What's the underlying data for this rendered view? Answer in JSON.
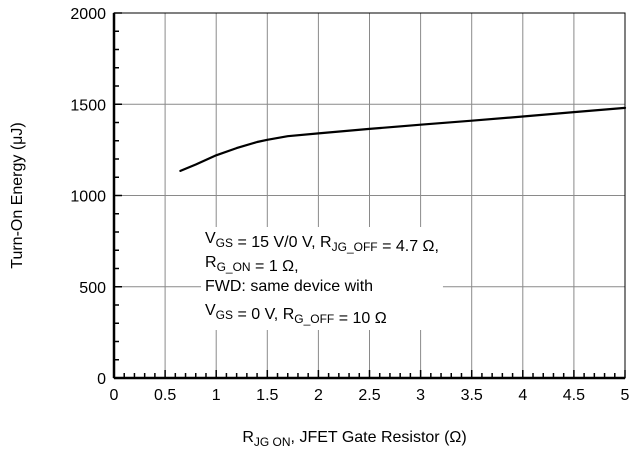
{
  "chart_data": {
    "type": "line",
    "title": "",
    "xlabel": {
      "main": "R",
      "sub": "JG ON",
      "rest": ", JFET Gate Resistor (Ω)"
    },
    "ylabel": "Turn-On Energy (μJ)",
    "xlim": [
      0,
      5
    ],
    "ylim": [
      0,
      2000
    ],
    "x_ticks": [
      "0",
      "0.5",
      "1",
      "1.5",
      "2",
      "2.5",
      "3",
      "3.5",
      "4",
      "4.5",
      "5"
    ],
    "y_ticks": [
      "0",
      "500",
      "1000",
      "1500",
      "2000"
    ],
    "grid": true,
    "series": [
      {
        "x": [
          0.65,
          0.8,
          1.0,
          1.2,
          1.4,
          1.5,
          1.7,
          2.0,
          2.5,
          3.0,
          3.5,
          4.0,
          4.5,
          5.0
        ],
        "values": [
          1135,
          1170,
          1220,
          1260,
          1293,
          1305,
          1325,
          1340,
          1365,
          1388,
          1410,
          1433,
          1457,
          1480
        ]
      }
    ],
    "annotation": [
      [
        {
          "t": "V"
        },
        {
          "t": "GS",
          "sub": true
        },
        {
          "t": " = 15 V/0 V, R"
        },
        {
          "t": "JG_OFF",
          "sub": true
        },
        {
          "t": " = 4.7 Ω,"
        }
      ],
      [
        {
          "t": "R"
        },
        {
          "t": "G_ON",
          "sub": true
        },
        {
          "t": " = 1 Ω,"
        }
      ],
      [
        {
          "t": "FWD: same device with"
        }
      ],
      [
        {
          "t": "V"
        },
        {
          "t": "GS",
          "sub": true
        },
        {
          "t": " = 0 V, R"
        },
        {
          "t": "G_OFF",
          "sub": true
        },
        {
          "t": " = 10 Ω"
        }
      ]
    ]
  }
}
